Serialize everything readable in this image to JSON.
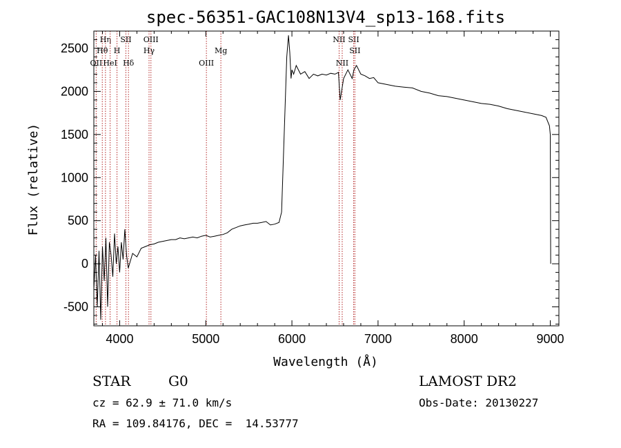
{
  "chart_data": {
    "type": "line",
    "title": "spec-56351-GAC108N13V4_sp13-168.fits",
    "xlabel": "Wavelength (Å)",
    "ylabel": "Flux (relative)",
    "xlim": [
      3700,
      9100
    ],
    "ylim": [
      -720,
      2700
    ],
    "xticks": [
      4000,
      5000,
      6000,
      7000,
      8000,
      9000
    ],
    "xtick_labels": [
      "4000",
      "5000",
      "6000",
      "7000",
      "8000",
      "9000"
    ],
    "yticks": [
      -500,
      0,
      500,
      1000,
      1500,
      2000,
      2500
    ],
    "ytick_labels": [
      "-500",
      "0",
      "500",
      "1000",
      "1500",
      "2000",
      "2500"
    ],
    "grid": false,
    "series": [
      {
        "x": [
          3700,
          3720,
          3740,
          3760,
          3780,
          3800,
          3820,
          3840,
          3860,
          3880,
          3900,
          3920,
          3940,
          3960,
          3980,
          4000,
          4020,
          4040,
          4060,
          4080,
          4100,
          4150,
          4200,
          4250,
          4300,
          4350,
          4400,
          4450,
          4500,
          4550,
          4600,
          4650,
          4700,
          4750,
          4800,
          4850,
          4900,
          4950,
          5000,
          5050,
          5100,
          5150,
          5200,
          5250,
          5300,
          5350,
          5400,
          5450,
          5500,
          5550,
          5600,
          5650,
          5700,
          5750,
          5800,
          5850,
          5880,
          5900,
          5920,
          5940,
          5960,
          5975,
          5990,
          6000,
          6020,
          6050,
          6100,
          6150,
          6200,
          6250,
          6300,
          6350,
          6400,
          6450,
          6500,
          6540,
          6560,
          6600,
          6650,
          6700,
          6720,
          6750,
          6800,
          6850,
          6900,
          6950,
          7000,
          7100,
          7200,
          7300,
          7400,
          7500,
          7600,
          7700,
          7800,
          7900,
          8000,
          8100,
          8200,
          8300,
          8400,
          8500,
          8600,
          8700,
          8800,
          8900,
          8950,
          8990,
          9000,
          9005
        ],
        "y": [
          -300,
          100,
          -500,
          150,
          -650,
          200,
          -200,
          300,
          -500,
          250,
          100,
          -150,
          350,
          0,
          200,
          -100,
          250,
          50,
          400,
          100,
          -50,
          120,
          80,
          180,
          200,
          220,
          230,
          250,
          260,
          270,
          280,
          280,
          300,
          290,
          300,
          310,
          300,
          320,
          330,
          310,
          320,
          330,
          340,
          360,
          400,
          420,
          440,
          450,
          460,
          470,
          470,
          480,
          490,
          450,
          460,
          480,
          600,
          1200,
          1800,
          2400,
          2650,
          2450,
          2150,
          2250,
          2200,
          2300,
          2200,
          2230,
          2150,
          2200,
          2180,
          2200,
          2190,
          2210,
          2200,
          2220,
          1900,
          2150,
          2250,
          2150,
          2250,
          2300,
          2200,
          2180,
          2150,
          2160,
          2100,
          2080,
          2060,
          2050,
          2040,
          2000,
          1980,
          1950,
          1940,
          1920,
          1900,
          1880,
          1860,
          1850,
          1830,
          1800,
          1780,
          1760,
          1740,
          1720,
          1700,
          1600,
          1500,
          0
        ]
      }
    ],
    "line_markers": [
      {
        "wavelength": 3727,
        "label": "OII",
        "row": 3
      },
      {
        "wavelength": 3798,
        "label": "Hθ",
        "row": 2
      },
      {
        "wavelength": 3835,
        "label": "Hη",
        "row": 1
      },
      {
        "wavelength": 3889,
        "label": "HeI",
        "row": 3
      },
      {
        "wavelength": 3969,
        "label": "H",
        "row": 2
      },
      {
        "wavelength": 4072,
        "label": "SII",
        "row": 1
      },
      {
        "wavelength": 4102,
        "label": "Hδ",
        "row": 3
      },
      {
        "wavelength": 4341,
        "label": "Hγ",
        "row": 2
      },
      {
        "wavelength": 4363,
        "label": "OIII",
        "row": 1
      },
      {
        "wavelength": 5007,
        "label": "OIII",
        "row": 3
      },
      {
        "wavelength": 5175,
        "label": "Mg",
        "row": 2
      },
      {
        "wavelength": 6548,
        "label": "NII",
        "row": 1
      },
      {
        "wavelength": 6584,
        "label": "NII",
        "row": 3
      },
      {
        "wavelength": 6717,
        "label": "SII",
        "row": 1
      },
      {
        "wavelength": 6731,
        "label": "SII",
        "row": 2
      }
    ]
  },
  "info": {
    "object_class": "STAR",
    "subclass": "G0",
    "survey": "LAMOST DR2",
    "redshift_line": "cz = 62.9 ± 71.0 km/s",
    "obs_date_line": "Obs-Date: 20130227",
    "coords_line": "RA = 109.84176, DEC =  14.53777"
  }
}
